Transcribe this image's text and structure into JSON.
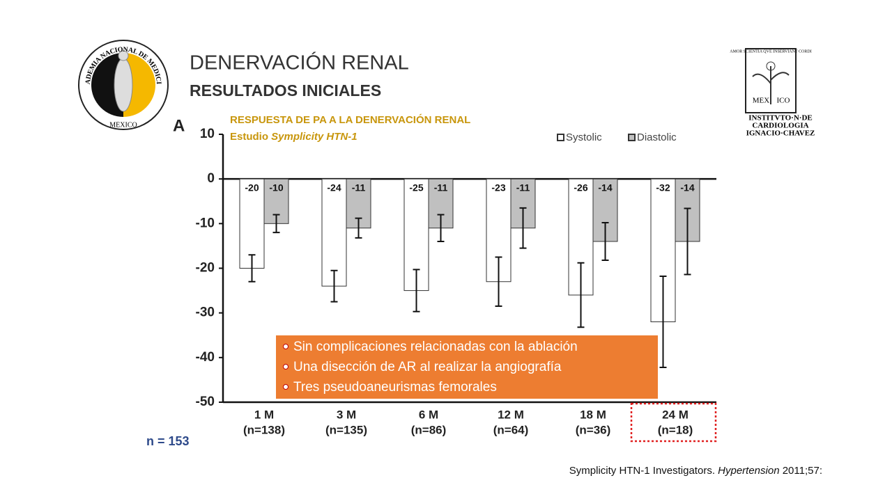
{
  "header": {
    "title": "DENERVACIÓN RENAL",
    "subtitle": "RESULTADOS INICIALES"
  },
  "logos": {
    "left_ring": "ACADEMIA NACIONAL DE MEDICINA",
    "left_bottom": "MEXICO",
    "right_motto": "AMOR SCIENTIA QVE INSERVIANT CORDI",
    "right_word": [
      "MEX",
      "ICO"
    ],
    "right_name": [
      "INSTITVTO·N·DE",
      "CARDIOLOGIA",
      "IGNACIO·CHAVEZ"
    ]
  },
  "chart_data": {
    "type": "bar",
    "panel": "A",
    "title": "RESPUESTA DE PA A LA DENERVACIÓN RENAL",
    "subtitle": [
      "Estudio ",
      "Symplicity HTN-1"
    ],
    "categories": [
      "1 M",
      "3 M",
      "6 M",
      "12 M",
      "18 M",
      "24 M"
    ],
    "category_notes": [
      "(n=138)",
      "(n=135)",
      "(n=86)",
      "(n=64)",
      "(n=36)",
      "(n=18)"
    ],
    "series": [
      {
        "name": "Systolic",
        "color": "#ffffff",
        "values": [
          -20,
          -24,
          -25,
          -23,
          -26,
          -32
        ],
        "errors": [
          3,
          3.5,
          4.7,
          5.5,
          7.2,
          10.2
        ]
      },
      {
        "name": "Diastolic",
        "color": "#c0c0c0",
        "values": [
          -10,
          -11,
          -11,
          -11,
          -14,
          -14
        ],
        "errors": [
          2,
          2.2,
          3,
          4.5,
          4.2,
          7.4
        ]
      }
    ],
    "ylim": [
      -50,
      10
    ],
    "yticks": [
      10,
      0,
      -10,
      -20,
      -30,
      -40,
      -50
    ],
    "legend": "top-right"
  },
  "notes": [
    "Sin complicaciones relacionadas con la ablación",
    "Una disección de AR al realizar la angiografía",
    "Tres pseudoaneurismas femorales"
  ],
  "sample": "n = 153",
  "citation": [
    "Symplicity HTN-1 Investigators. ",
    "Hypertension",
    " 2011;57:"
  ]
}
